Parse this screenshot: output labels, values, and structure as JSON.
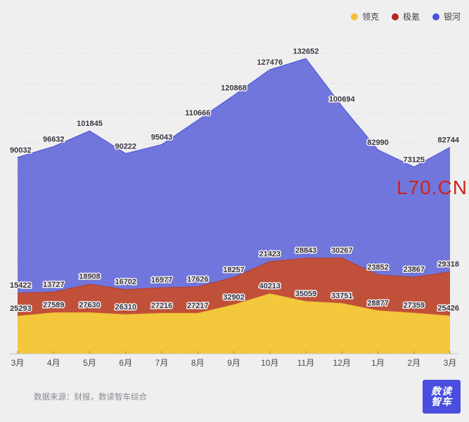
{
  "chart_data": {
    "type": "area",
    "stacked": true,
    "categories": [
      "3月",
      "4月",
      "5月",
      "6月",
      "7月",
      "8月",
      "9月",
      "10月",
      "11月",
      "12月",
      "1月",
      "2月",
      "3月"
    ],
    "series": [
      {
        "id": "lynkco",
        "name": "领克",
        "marker_color": "#f2c139",
        "area_color": "#f3c83c",
        "line_color": "#e7ae2f",
        "values": [
          25293,
          27589,
          27630,
          26310,
          27216,
          27217,
          32902,
          40213,
          35059,
          33751,
          28877,
          27359,
          25426
        ]
      },
      {
        "id": "zeekr",
        "name": "极氪",
        "marker_color": "#b2271d",
        "area_color": "#c1503a",
        "line_color": "#ae3526",
        "values": [
          15422,
          13727,
          18908,
          16702,
          16977,
          17626,
          18257,
          21423,
          28843,
          30267,
          23852,
          23867,
          29318
        ]
      },
      {
        "id": "galaxy",
        "name": "银河",
        "marker_color": "#4a50de",
        "area_color": "#7176dc",
        "line_color": "#5c61d8",
        "values": [
          90032,
          96632,
          101845,
          90222,
          95043,
          110666,
          120868,
          127476,
          132652,
          100694,
          82990,
          73125,
          82744
        ]
      }
    ],
    "title": "",
    "xlabel": "",
    "ylabel": "",
    "ylim": [
      0,
      200000
    ],
    "grid": true,
    "grid_step": 20000,
    "legend_position": "top-right"
  },
  "watermark": {
    "text": "L70.CN",
    "color": "#ce231e"
  },
  "footer": {
    "source": "数据来源：财报，数读智车综合"
  },
  "logo": {
    "line1": "数读",
    "line2": "智车",
    "bg_color": "#4a4ede"
  },
  "style_colors": {
    "background": "#f0eff0",
    "gridline": "#dbd9dc",
    "axis_line": "#c8c6c9",
    "axis_tick": "#8f8b90",
    "axis_label": "#4c4650",
    "data_label": "#3a3540",
    "data_label_halo": "#f3f2f3"
  }
}
